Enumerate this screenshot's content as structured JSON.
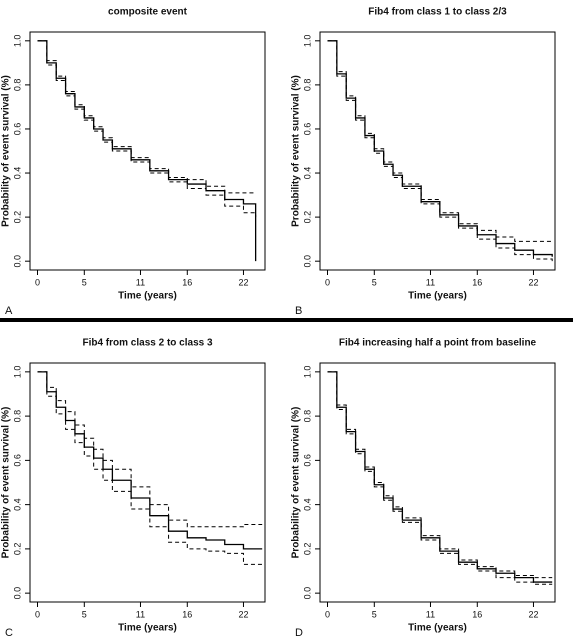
{
  "chart_data": [
    {
      "type": "line",
      "step": true,
      "panel": "A",
      "title": "composite event",
      "xlabel": "Time (years)",
      "ylabel": "Probability of event survival (%)",
      "x": [
        0,
        1,
        2,
        3,
        4,
        5,
        6,
        7,
        8,
        10,
        12,
        14,
        16,
        18,
        20,
        22,
        23.3
      ],
      "series": [
        {
          "color": "#000000",
          "style": "solid",
          "values": [
            1,
            0.9,
            0.83,
            0.76,
            0.7,
            0.65,
            0.6,
            0.55,
            0.51,
            0.46,
            0.41,
            0.37,
            0.35,
            0.32,
            0.28,
            0.26,
            0
          ]
        },
        {
          "color": "#000000",
          "style": "dashed",
          "values": [
            1,
            0.89,
            0.82,
            0.75,
            0.69,
            0.64,
            0.59,
            0.54,
            0.5,
            0.45,
            0.4,
            0.36,
            0.33,
            0.3,
            0.25,
            0.22,
            0.2
          ]
        },
        {
          "color": "#000000",
          "style": "dashed",
          "values": [
            1,
            0.91,
            0.84,
            0.77,
            0.71,
            0.66,
            0.61,
            0.56,
            0.52,
            0.47,
            0.42,
            0.38,
            0.37,
            0.34,
            0.31,
            0.31,
            0.31
          ]
        }
      ],
      "xlim": [
        -0.8,
        24.3
      ],
      "xticks": [
        0,
        5,
        11,
        16,
        22
      ],
      "ylim": [
        -0.04,
        1.04
      ],
      "yticks": [
        {
          "value": 0,
          "label": "0.0"
        },
        0.2,
        0.4,
        0.6,
        0.8,
        {
          "value": 1,
          "label": "1.0"
        }
      ]
    },
    {
      "type": "line",
      "step": true,
      "panel": "B",
      "title": "Fib4 from class 1 to class 2/3",
      "xlabel": "Time (years)",
      "ylabel": "Probability of event survival (%)",
      "x": [
        0,
        1,
        2,
        3,
        4,
        5,
        6,
        7,
        8,
        10,
        12,
        14,
        16,
        18,
        20,
        22,
        24
      ],
      "series": [
        {
          "color": "#000000",
          "style": "solid",
          "values": [
            1,
            0.85,
            0.74,
            0.65,
            0.57,
            0.5,
            0.44,
            0.39,
            0.34,
            0.27,
            0.21,
            0.16,
            0.12,
            0.08,
            0.05,
            0.03,
            0.02
          ]
        },
        {
          "color": "#000000",
          "style": "dashed",
          "values": [
            1,
            0.84,
            0.73,
            0.64,
            0.56,
            0.49,
            0.43,
            0.38,
            0.33,
            0.26,
            0.2,
            0.15,
            0.1,
            0.06,
            0.03,
            0.01,
            0.0
          ]
        },
        {
          "color": "#000000",
          "style": "dashed",
          "values": [
            1,
            0.86,
            0.75,
            0.66,
            0.58,
            0.51,
            0.45,
            0.4,
            0.35,
            0.28,
            0.22,
            0.17,
            0.14,
            0.11,
            0.09,
            0.09,
            0.09
          ]
        }
      ],
      "xlim": [
        -0.8,
        24.3
      ],
      "xticks": [
        0,
        5,
        11,
        16,
        22
      ],
      "ylim": [
        -0.04,
        1.04
      ],
      "yticks": [
        {
          "value": 0,
          "label": "0.0"
        },
        0.2,
        0.4,
        0.6,
        0.8,
        {
          "value": 1,
          "label": "1.0"
        }
      ]
    },
    {
      "type": "line",
      "step": true,
      "panel": "C",
      "title": "Fib4 from class 2 to class 3",
      "xlabel": "Time (years)",
      "ylabel": "Probability of event survival (%)",
      "x": [
        0,
        1,
        2,
        3,
        4,
        5,
        6,
        7,
        8,
        10,
        12,
        14,
        16,
        18,
        20,
        22,
        24
      ],
      "series": [
        {
          "color": "#000000",
          "style": "solid",
          "values": [
            1,
            0.91,
            0.84,
            0.78,
            0.72,
            0.66,
            0.61,
            0.56,
            0.51,
            0.43,
            0.35,
            0.28,
            0.25,
            0.24,
            0.22,
            0.2,
            0.2
          ]
        },
        {
          "color": "#000000",
          "style": "dashed",
          "values": [
            1,
            0.89,
            0.81,
            0.74,
            0.68,
            0.62,
            0.56,
            0.51,
            0.46,
            0.38,
            0.3,
            0.23,
            0.2,
            0.19,
            0.18,
            0.13,
            0.13
          ]
        },
        {
          "color": "#000000",
          "style": "dashed",
          "values": [
            1,
            0.93,
            0.87,
            0.82,
            0.76,
            0.7,
            0.65,
            0.6,
            0.56,
            0.48,
            0.4,
            0.33,
            0.3,
            0.3,
            0.3,
            0.31,
            0.31
          ]
        }
      ],
      "xlim": [
        -0.8,
        24.3
      ],
      "xticks": [
        0,
        5,
        11,
        16,
        22
      ],
      "ylim": [
        -0.04,
        1.04
      ],
      "yticks": [
        {
          "value": 0,
          "label": "0.0"
        },
        0.2,
        0.4,
        0.6,
        0.8,
        {
          "value": 1,
          "label": "1.0"
        }
      ]
    },
    {
      "type": "line",
      "step": true,
      "panel": "D",
      "title": "Fib4 increasing half a point from baseline",
      "xlabel": "Time (years)",
      "ylabel": "Probability of event survival (%)",
      "x": [
        0,
        1,
        2,
        3,
        4,
        5,
        6,
        7,
        8,
        10,
        12,
        14,
        16,
        18,
        20,
        22,
        24
      ],
      "series": [
        {
          "color": "#000000",
          "style": "solid",
          "values": [
            1,
            0.84,
            0.73,
            0.64,
            0.56,
            0.49,
            0.43,
            0.38,
            0.33,
            0.25,
            0.19,
            0.14,
            0.11,
            0.09,
            0.07,
            0.05,
            0.05
          ]
        },
        {
          "color": "#000000",
          "style": "dashed",
          "values": [
            1,
            0.83,
            0.72,
            0.63,
            0.55,
            0.48,
            0.42,
            0.37,
            0.32,
            0.24,
            0.18,
            0.13,
            0.1,
            0.07,
            0.05,
            0.04,
            0.04
          ]
        },
        {
          "color": "#000000",
          "style": "dashed",
          "values": [
            1,
            0.85,
            0.74,
            0.65,
            0.57,
            0.5,
            0.44,
            0.39,
            0.34,
            0.26,
            0.2,
            0.15,
            0.12,
            0.1,
            0.08,
            0.07,
            0.07
          ]
        }
      ],
      "xlim": [
        -0.8,
        24.3
      ],
      "xticks": [
        0,
        5,
        11,
        16,
        22
      ],
      "ylim": [
        -0.04,
        1.04
      ],
      "yticks": [
        {
          "value": 0,
          "label": "0.0"
        },
        0.2,
        0.4,
        0.6,
        0.8,
        {
          "value": 1,
          "label": "1.0"
        }
      ]
    }
  ]
}
